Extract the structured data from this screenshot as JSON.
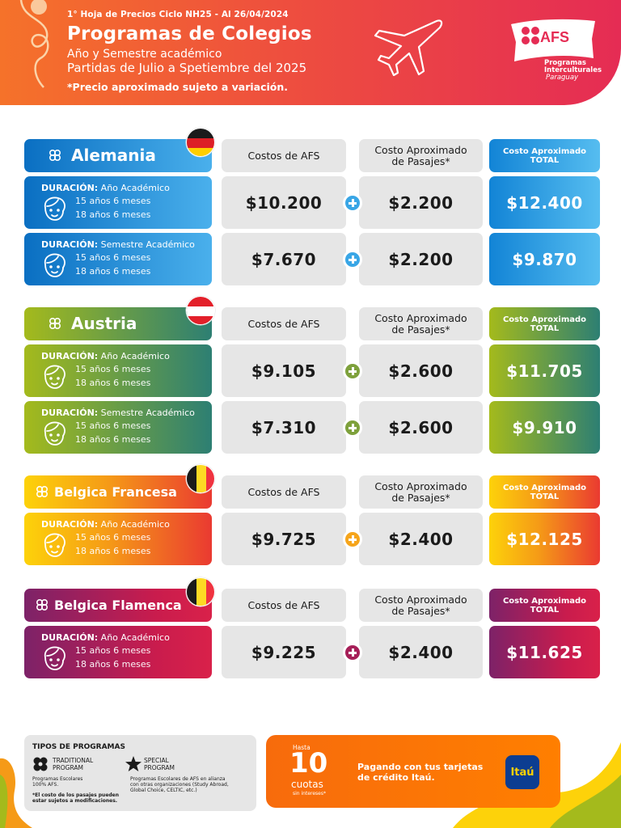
{
  "header": {
    "cycle": "1° Hoja de Precios Ciclo NH25 - Al 26/04/2024",
    "title": "Programas de Colegios",
    "subtitle1": "Año y Semestre académico",
    "subtitle2": "Partidas de Julio a Spetiembre del 2025",
    "note": "*Precio aproximado sujeto a variación.",
    "logo": {
      "text": "AFS",
      "sub1": "Programas",
      "sub2": "Interculturales",
      "sub3": "Paraguay"
    }
  },
  "column_headers": {
    "afs": "Costos de AFS",
    "pasajes_1": "Costo Aproximado",
    "pasajes_2": "de Pasajes*",
    "total_1": "Costo Aproximado",
    "total_2": "TOTAL"
  },
  "duration_label": "DURACIÓN:",
  "countries": [
    {
      "name": "Alemania",
      "theme": "blue",
      "flag": "germany-flag",
      "rows": [
        {
          "duration": "Año Académico",
          "age_min": "15 años 6 meses",
          "age_max": "18 años 6 meses",
          "afs": "$10.200",
          "pasajes": "$2.200",
          "total": "$12.400"
        },
        {
          "duration": "Semestre Académico",
          "age_min": "15 años 6 meses",
          "age_max": "18 años 6 meses",
          "afs": "$7.670",
          "pasajes": "$2.200",
          "total": "$9.870"
        }
      ]
    },
    {
      "name": "Austria",
      "theme": "green",
      "flag": "austria-flag",
      "rows": [
        {
          "duration": "Año Académico",
          "age_min": "15 años 6 meses",
          "age_max": "18 años 6 meses",
          "afs": "$9.105",
          "pasajes": "$2.600",
          "total": "$11.705"
        },
        {
          "duration": "Semestre Académico",
          "age_min": "15 años 6 meses",
          "age_max": "18 años 6 meses",
          "afs": "$7.310",
          "pasajes": "$2.600",
          "total": "$9.910"
        }
      ]
    },
    {
      "name": "Belgica Francesa",
      "theme": "yellow",
      "flag": "belgium-flag",
      "rows": [
        {
          "duration": "Año Académico",
          "age_min": "15 años 6 meses",
          "age_max": "18 años 6 meses",
          "afs": "$9.725",
          "pasajes": "$2.400",
          "total": "$12.125"
        }
      ]
    },
    {
      "name": "Belgica Flamenca",
      "theme": "purple",
      "flag": "belgium-flag",
      "rows": [
        {
          "duration": "Año Académico",
          "age_min": "15 años 6 meses",
          "age_max": "18 años 6 meses",
          "afs": "$9.225",
          "pasajes": "$2.400",
          "total": "$11.625"
        }
      ]
    }
  ],
  "tipos": {
    "title": "TIPOS DE PROGRAMAS",
    "traditional_1": "TRADITIONAL",
    "traditional_2": "PROGRAM",
    "traditional_desc_1": "Programas Escolares",
    "traditional_desc_2": "100% AFS.",
    "special_1": "SPECIAL",
    "special_2": "PROGRAM",
    "special_desc_1": "Programas Escolares de AFS en alianza",
    "special_desc_2": "con otras organizaciones (Study Abroad,",
    "special_desc_3": "Global Choice, CELTIC, etc.)",
    "note_1": "*El costo de los pasajes pueden",
    "note_2": "estar sujetos a modificaciones."
  },
  "promo": {
    "hasta": "Hasta",
    "number": "10",
    "cuotas": "cuotas",
    "sin_intereses": "sin intereses*",
    "text_1": "Pagando con tus tarjetas",
    "text_2": "de crédito Itaú.",
    "bank": "Itaú"
  },
  "colors": {
    "header_orange": "#f5722a",
    "header_pink": "#e52c54",
    "blue": "#0a6fc2",
    "green": "#a4ba1c",
    "yellow": "#fdd20a",
    "purple": "#7d2268",
    "grey_box": "#e6e6e6",
    "itau_blue": "#0c3d91",
    "promo_orange": "#ff7f00"
  }
}
